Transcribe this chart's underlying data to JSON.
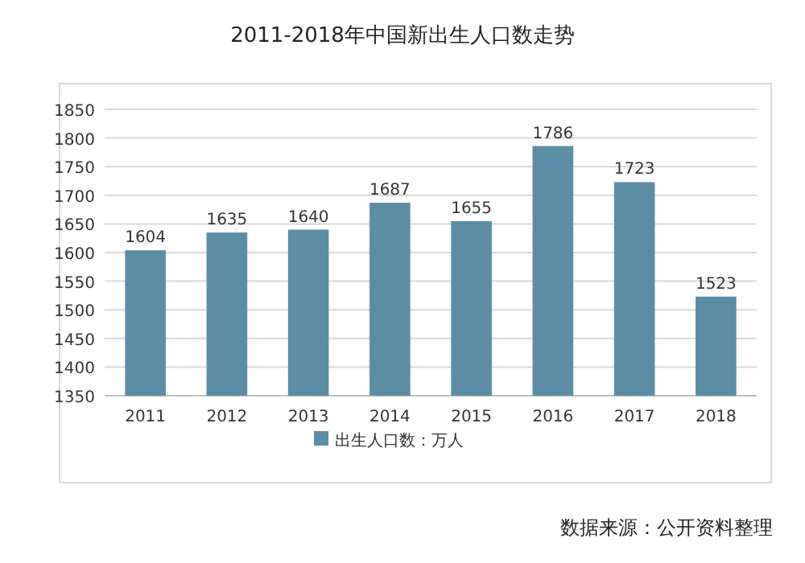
{
  "chart_data": {
    "type": "bar",
    "title": "2011-2018年中国新出生人口数走势",
    "categories": [
      "2011",
      "2012",
      "2013",
      "2014",
      "2015",
      "2016",
      "2017",
      "2018"
    ],
    "series": [
      {
        "name": "出生人口数：万人",
        "color": "#5b8ea6",
        "values": [
          1604,
          1635,
          1640,
          1687,
          1655,
          1786,
          1723,
          1523
        ]
      }
    ],
    "ylim": [
      1350,
      1850
    ],
    "yticks": [
      1350,
      1400,
      1450,
      1500,
      1550,
      1600,
      1650,
      1700,
      1750,
      1800,
      1850
    ],
    "grid": "y",
    "legend": "bottom",
    "data_labels": true,
    "annotations": [
      "数据来源：公开资料整理"
    ]
  }
}
